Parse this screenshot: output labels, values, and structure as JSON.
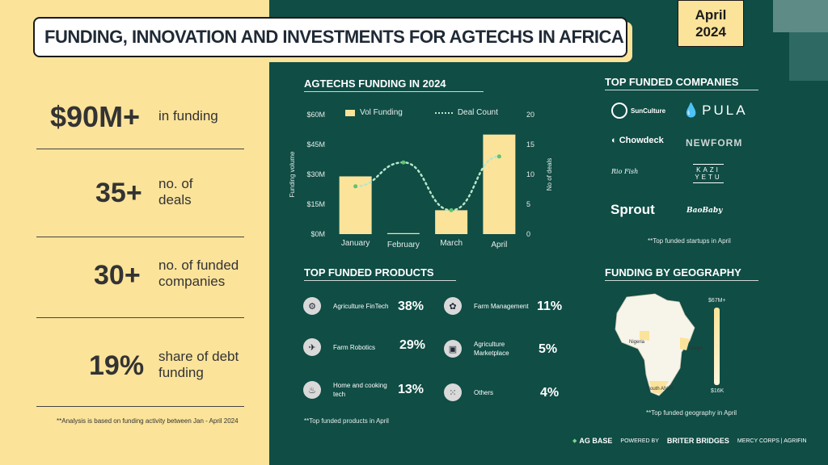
{
  "title": "FUNDING, INNOVATION AND INVESTMENTS FOR AGTECHS IN AFRICA",
  "date": {
    "month": "April",
    "year": "2024"
  },
  "stats": [
    {
      "value": "$90M+",
      "label_line1": "in funding",
      "label_line2": ""
    },
    {
      "value": "35+",
      "label_line1": "no. of",
      "label_line2": "deals"
    },
    {
      "value": "30+",
      "label_line1": "no. of funded",
      "label_line2": "companies"
    },
    {
      "value": "19%",
      "label_line1": "share of debt",
      "label_line2": "funding"
    }
  ],
  "left_note": "**Analysis is based on funding activity between Jan - April 2024",
  "chart_section_title": "AGTECHS FUNDING  IN 2024",
  "chart_data": {
    "type": "bar",
    "title": "AGTECHS FUNDING  IN 2024",
    "categories": [
      "January",
      "February",
      "March",
      "April"
    ],
    "series": [
      {
        "name": "Vol Funding",
        "type": "bar",
        "values": [
          29,
          0.5,
          12,
          50
        ],
        "axis": "left"
      },
      {
        "name": "Deal Count",
        "type": "line",
        "values": [
          8,
          12,
          4,
          13
        ],
        "axis": "right"
      }
    ],
    "ylabel": "Funding volume",
    "y2label": "No of deals",
    "ylim": [
      0,
      60
    ],
    "y2lim": [
      0,
      20
    ],
    "y_ticks": [
      "$0M",
      "$15M",
      "$30M",
      "$45M",
      "$60M"
    ],
    "y2_ticks": [
      "0",
      "5",
      "10",
      "15",
      "20"
    ],
    "legend": "top"
  },
  "companies_title": "TOP FUNDED COMPANIES",
  "companies": [
    "SunCulture",
    "PULA",
    "Chowdeck",
    "NEWFORM",
    "Rio Fish",
    "KAZI YETU",
    "Sprout",
    "BaoBaby"
  ],
  "companies_note": "**Top funded startups in April",
  "products_title": "TOP FUNDED PRODUCTS",
  "products": [
    {
      "label": "Agriculture FinTech",
      "pct": "38%",
      "icon": "fintech-icon",
      "glyph": "⚙"
    },
    {
      "label": "Farm Management",
      "pct": "11%",
      "icon": "farm-management-icon",
      "glyph": "✿"
    },
    {
      "label": "Farm Robotics",
      "pct": "29%",
      "icon": "robotics-icon",
      "glyph": "✈"
    },
    {
      "label": "Agriculture Marketplace",
      "pct": "5%",
      "icon": "marketplace-icon",
      "glyph": "▣"
    },
    {
      "label": "Home and cooking tech",
      "pct": "13%",
      "icon": "cooking-icon",
      "glyph": "♨"
    },
    {
      "label": "Others",
      "pct": "4%",
      "icon": "others-icon",
      "glyph": "⁙"
    }
  ],
  "products_note": "**Top funded products in April",
  "geo_title": "FUNDING BY GEOGRAPHY",
  "geo": {
    "max_label": "$67M+",
    "min_label": "$16K",
    "countries": [
      "Nigeria",
      "Kenya",
      "South Africa"
    ]
  },
  "geo_note": "**Top funded geography in April",
  "footer": {
    "brand": "AG BASE",
    "powered": "POWERED BY",
    "partner1": "BRITER BRIDGES",
    "partner2": "MERCY CORPS | AGRIFIN"
  },
  "colors": {
    "bg": "#0f4d45",
    "panel": "#fbe39a",
    "bar": "#fbe39a",
    "line": "#b9e6c9"
  }
}
